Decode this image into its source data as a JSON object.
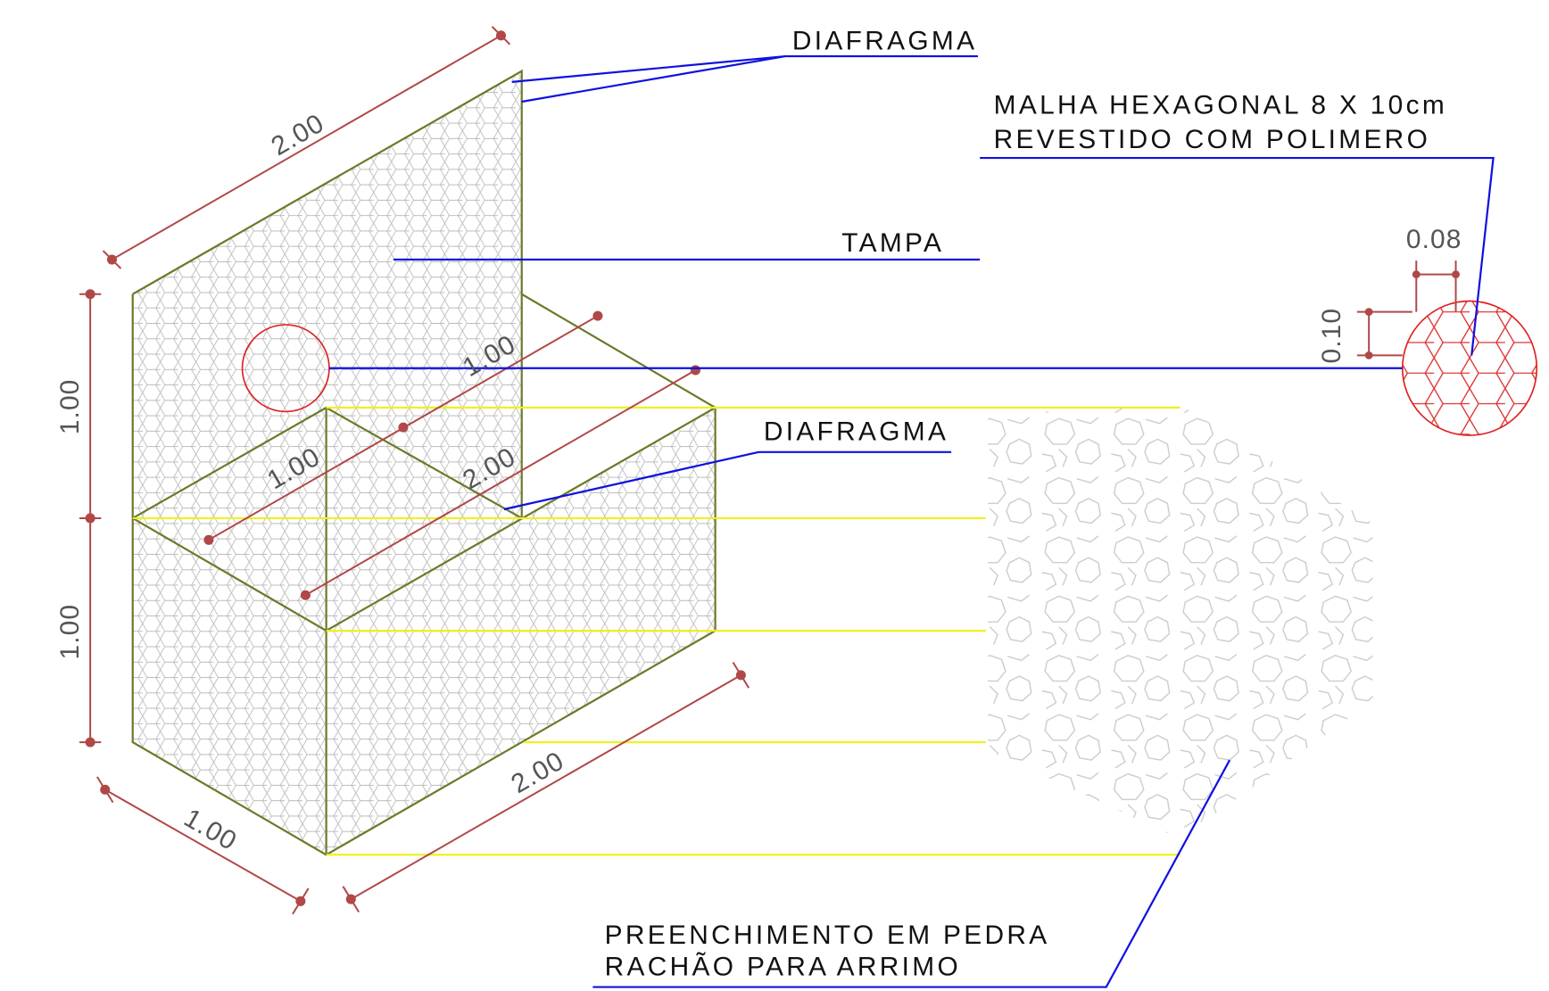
{
  "labels": {
    "diafragma_top": "DIAFRAGMA",
    "malha": [
      "MALHA HEXAGONAL 8 X 10cm",
      "REVESTIDO COM POLIMERO"
    ],
    "tampa": "TAMPA",
    "diafragma_mid": "DIAFRAGMA",
    "preenchimento": [
      "PREENCHIMENTO EM PEDRA",
      "RACHÃO PARA ARRIMO"
    ]
  },
  "dimensions": {
    "top_length": "2.00",
    "upper_height": "1.00",
    "lower_height": "1.00",
    "inner_width": "1.00",
    "inner_width_2": "1.00",
    "inner_length": "2.00",
    "bottom_width": "1.00",
    "bottom_length": "2.00",
    "mesh_width": "0.08",
    "mesh_height": "0.10"
  }
}
